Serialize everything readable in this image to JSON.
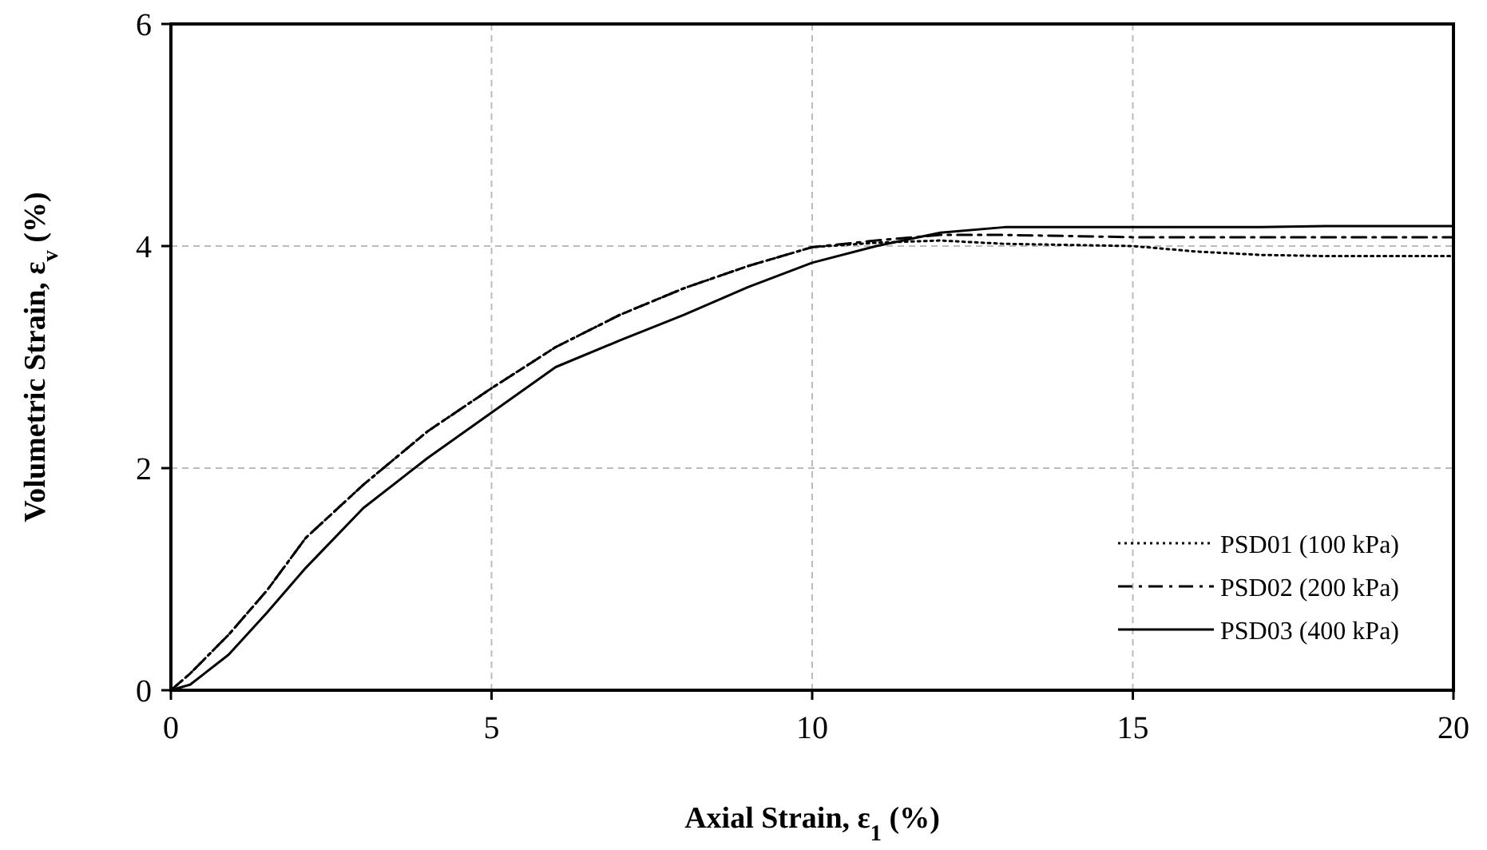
{
  "chart_data": {
    "type": "line",
    "xlabel": "Axial Strain, ε$_{1}$ (%)",
    "ylabel": "Volumetric Strain, ε$_{v}$ (%)",
    "x": [
      0,
      0.3,
      0.9,
      1.5,
      2.1,
      3,
      4,
      5,
      6,
      7,
      8,
      9,
      10,
      11,
      12,
      13,
      14,
      15,
      16,
      17,
      18,
      19,
      20
    ],
    "xlim": [
      0,
      20
    ],
    "xticks": [
      0,
      5,
      10,
      15,
      20
    ],
    "ylim": [
      0,
      6
    ],
    "yticks": [
      0,
      2,
      4,
      6
    ],
    "grid": true,
    "legend": "bottom right",
    "series": [
      {
        "name": "PSD01 (100 kPa)",
        "color": "#000000",
        "line_style": "dotted",
        "values": [
          0,
          0.15,
          0.5,
          0.9,
          1.37,
          1.85,
          2.33,
          2.72,
          3.09,
          3.38,
          3.62,
          3.82,
          3.99,
          4.03,
          4.05,
          4.02,
          4.01,
          4.0,
          3.95,
          3.92,
          3.91,
          3.91,
          3.91
        ]
      },
      {
        "name": "PSD02 (200 kPa)",
        "color": "#000000",
        "line_style": "dashed",
        "values": [
          0,
          0.15,
          0.5,
          0.9,
          1.37,
          1.85,
          2.33,
          2.72,
          3.09,
          3.38,
          3.62,
          3.82,
          3.99,
          4.05,
          4.1,
          4.1,
          4.09,
          4.08,
          4.08,
          4.08,
          4.08,
          4.08,
          4.08
        ]
      },
      {
        "name": "PSD03 (400 kPa)",
        "color": "#000000",
        "line_style": "solid",
        "values": [
          0,
          0.05,
          0.32,
          0.7,
          1.1,
          1.64,
          2.09,
          2.5,
          2.91,
          3.15,
          3.38,
          3.63,
          3.85,
          4.0,
          4.12,
          4.17,
          4.17,
          4.17,
          4.17,
          4.17,
          4.18,
          4.18,
          4.18
        ]
      }
    ]
  }
}
